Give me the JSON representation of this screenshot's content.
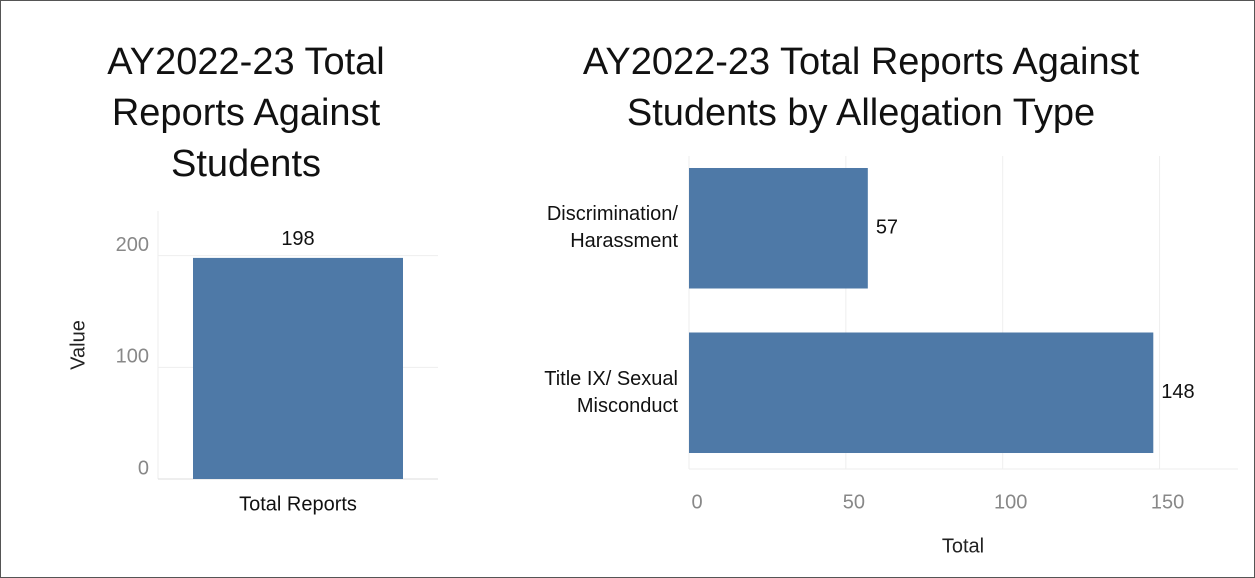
{
  "chart_data": [
    {
      "type": "bar",
      "title": "AY2022-23 Total Reports Against Students",
      "ylabel": "Value",
      "categories": [
        "Total Reports"
      ],
      "values": [
        198
      ],
      "color": "#4e79a7",
      "ylim": [
        0,
        240
      ],
      "yticks": [
        0,
        100,
        200
      ],
      "grid": true
    },
    {
      "type": "bar",
      "horizontal": true,
      "title": "AY2022-23 Total Reports Against Students by Allegation Type",
      "xlabel": "Total",
      "categories": [
        "Discrimination/ Harassment",
        "Title IX/ Sexual Misconduct"
      ],
      "values": [
        57,
        148
      ],
      "color": "#4e79a7",
      "xlim": [
        0,
        175
      ],
      "xticks": [
        0,
        50,
        100,
        150
      ],
      "grid": true
    }
  ]
}
